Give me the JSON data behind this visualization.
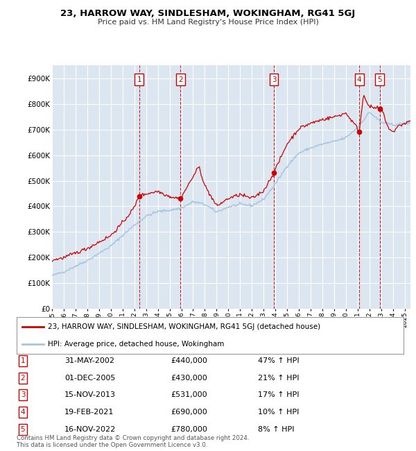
{
  "title": "23, HARROW WAY, SINDLESHAM, WOKINGHAM, RG41 5GJ",
  "subtitle": "Price paid vs. HM Land Registry's House Price Index (HPI)",
  "background_color": "#ffffff",
  "plot_bg_color": "#dce6f1",
  "grid_color": "#ffffff",
  "hpi_color": "#a8c4e0",
  "price_color": "#cc0000",
  "marker_color": "#cc0000",
  "dashed_line_color": "#cc0000",
  "transactions": [
    {
      "num": 1,
      "date": "31-MAY-2002",
      "price": 440000,
      "hpi_pct": "47% ↑ HPI",
      "year": 2002.41
    },
    {
      "num": 2,
      "date": "01-DEC-2005",
      "price": 430000,
      "hpi_pct": "21% ↑ HPI",
      "year": 2005.92
    },
    {
      "num": 3,
      "date": "15-NOV-2013",
      "price": 531000,
      "hpi_pct": "17% ↑ HPI",
      "year": 2013.87
    },
    {
      "num": 4,
      "date": "19-FEB-2021",
      "price": 690000,
      "hpi_pct": "10% ↑ HPI",
      "year": 2021.13
    },
    {
      "num": 5,
      "date": "16-NOV-2022",
      "price": 780000,
      "hpi_pct": "8% ↑ HPI",
      "year": 2022.87
    }
  ],
  "legend_entries": [
    "23, HARROW WAY, SINDLESHAM, WOKINGHAM, RG41 5GJ (detached house)",
    "HPI: Average price, detached house, Wokingham"
  ],
  "footer_lines": [
    "Contains HM Land Registry data © Crown copyright and database right 2024.",
    "This data is licensed under the Open Government Licence v3.0."
  ],
  "yticks": [
    0,
    100000,
    200000,
    300000,
    400000,
    500000,
    600000,
    700000,
    800000,
    900000
  ],
  "ytick_labels": [
    "£0",
    "£100K",
    "£200K",
    "£300K",
    "£400K",
    "£500K",
    "£600K",
    "£700K",
    "£800K",
    "£900K"
  ],
  "xmin": 1995,
  "xmax": 2025.5,
  "ymin": 0,
  "ymax": 950000
}
